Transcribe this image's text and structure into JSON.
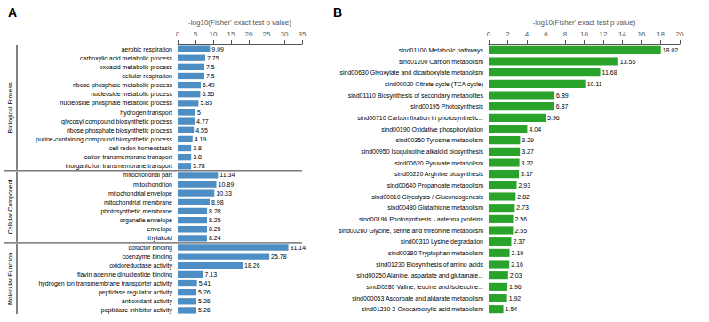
{
  "chart_data": [
    {
      "type": "bar",
      "orientation": "horizontal",
      "title": "A",
      "xlabel": "-log10(Fisher' exact test p value)",
      "groups": [
        {
          "name": "Biological Process",
          "categories": [
            "aerobic respiration",
            "carboxylic acid metabolic process",
            "oxoacid metabolic process",
            "cellular respiration",
            "ribose phosphate metabolic process",
            "nucleoside metabolic process",
            "nucleoside phosphate metabolic process",
            "hydrogen transport",
            "glycosyl compound biosynthetic process",
            "ribose phosphate biosynthetic process",
            "purine-containing compound biosynthetic process",
            "cell redox homeostasis",
            "cation transmembrane transport",
            "inorganic ion transmembrane transport"
          ],
          "values": [
            9.09,
            7.75,
            7.5,
            7.5,
            6.49,
            6.35,
            5.85,
            5.0,
            4.77,
            4.55,
            4.19,
            3.8,
            3.8,
            3.78
          ]
        },
        {
          "name": "Cellular Component",
          "categories": [
            "mitochondrial part",
            "mitochondrion",
            "mitochondrial envelope",
            "mitochondrial membrane",
            "photosynthetic membrane",
            "organelle envelope",
            "envelope",
            "thylakoid"
          ],
          "values": [
            11.34,
            10.89,
            10.33,
            8.98,
            8.28,
            8.25,
            8.25,
            8.24
          ]
        },
        {
          "name": "Molecular Function",
          "categories": [
            "cofactor binding",
            "coenzyme binding",
            "oxidoreductase activity",
            "flavin adenine dinucleotide binding",
            "hydrogen ion transmembrane transporter activity",
            "peptidase regulator activity",
            "antioxidant activity",
            "peptidase inhibitor activity"
          ],
          "values": [
            31.14,
            25.78,
            18.26,
            7.13,
            5.41,
            5.26,
            5.26,
            5.26
          ]
        }
      ],
      "color": "#4d8ec4",
      "xlim": [
        0,
        35
      ],
      "xticks": [
        0,
        5,
        10,
        15,
        20,
        25,
        30,
        35
      ],
      "data_labels": true,
      "grid": false
    },
    {
      "type": "bar",
      "orientation": "horizontal",
      "title": "B",
      "xlabel": "-log10(Fisher' exact test p value)",
      "categories": [
        "sind01100 Metabolic pathways",
        "sind01200 Carbon metabolism",
        "sind00630 Glyoxylate and dicarboxylate metabolism",
        "sind00020 Citrate cycle (TCA cycle)",
        "sind01110 Biosynthesis of secondary metabolites",
        "sind00195 Photosynthesis",
        "sind00710 Carbon fixation in photosynthetic...",
        "sind00190 Oxidative phosphorylation",
        "sind00350 Tyrosine metabolism",
        "sind00950 Isoquinoline alkaloid biosynthesis",
        "sind00620 Pyruvate metabolism",
        "sind00220 Arginine biosynthesis",
        "sind00640 Propanoate metabolism",
        "sind00010 Glycolysis / Gluconeogenesis",
        "sind00480 Glutathione metabolism",
        "sind00196 Photosynthesis - antenna proteins",
        "sind00260 Glycine, serine and threonine metabolism",
        "sind00310 Lysine degradation",
        "sind00380 Tryptophan metabolism",
        "sind01230 Biosynthesis of amino acids",
        "sind00250 Alanine, aspartate and glutamate...",
        "sind00280 Valine, leucine and isoleucine...",
        "sind000053 Ascorbate and aldarate metabolism",
        "sind01210 2-Oxocarboxylic acid metabolism"
      ],
      "values": [
        18.02,
        13.56,
        11.68,
        10.11,
        6.89,
        6.87,
        5.96,
        4.04,
        3.29,
        3.27,
        3.22,
        3.17,
        2.93,
        2.82,
        2.73,
        2.56,
        2.55,
        2.37,
        2.19,
        2.16,
        2.03,
        1.96,
        1.92,
        1.54
      ],
      "color": "#29a329",
      "xlim": [
        0,
        20
      ],
      "xticks": [
        0,
        2,
        4,
        6,
        8,
        10,
        12,
        14,
        16,
        18,
        20
      ],
      "data_labels": true,
      "grid": false
    }
  ]
}
